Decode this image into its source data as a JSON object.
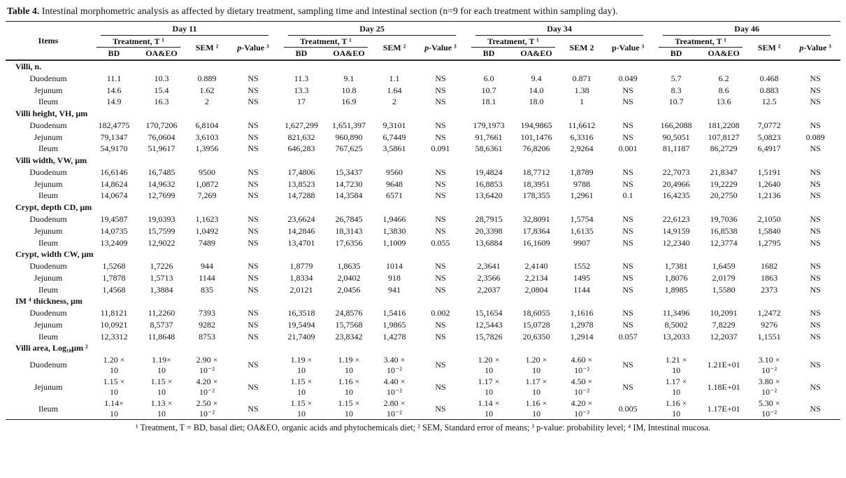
{
  "title": {
    "label": "Table 4.",
    "text": " Intestinal morphometric analysis as affected by dietary treatment, sampling time and intestinal section (n=9 for each treatment within sampling day)."
  },
  "header": {
    "items_label": "Items",
    "bd_label": "BD",
    "oaeo_label": "OA&EO",
    "days": [
      {
        "label": "Day 11",
        "treatment_label": "Treatment, T ¹",
        "sem_label": "SEM ²",
        "pvalue_p": "p",
        "pvalue_p_style": "font-style:italic",
        "pvalue_rest": "-Value ³"
      },
      {
        "label": "Day 25",
        "treatment_label": "Treatment, T ¹",
        "sem_label": "SEM ²",
        "pvalue_p": "p",
        "pvalue_p_style": "font-style:italic",
        "pvalue_rest": "-Value ³"
      },
      {
        "label": "Day 34",
        "treatment_label": "Treatment, T ¹",
        "sem_label": "SEM 2",
        "pvalue_p": "p",
        "pvalue_p_style": "font-style:normal",
        "pvalue_rest": "-Value ³"
      },
      {
        "label": "Day 46",
        "treatment_label": "Treatment, T ¹",
        "sem_label": "SEM ²",
        "pvalue_p": "p",
        "pvalue_p_style": "font-style:italic",
        "pvalue_rest": "-Value ³"
      }
    ]
  },
  "sections": [
    {
      "name": "Villi, n.",
      "rows": [
        {
          "item": "Duodenum",
          "values": [
            "11.1",
            "10.3",
            "0.889",
            "NS",
            "11.3",
            "9.1",
            "1.1",
            "NS",
            "6.0",
            "9.4",
            "0.871",
            "0.049",
            "5.7",
            "6.2",
            "0.468",
            "NS"
          ]
        },
        {
          "item": "Jejunum",
          "values": [
            "14.6",
            "15.4",
            "1.62",
            "NS",
            "13.3",
            "10.8",
            "1.64",
            "NS",
            "10.7",
            "14.0",
            "1.38",
            "NS",
            "8.3",
            "8.6",
            "0.883",
            "NS"
          ]
        },
        {
          "item": "Ileum",
          "values": [
            "14.9",
            "16.3",
            "2",
            "NS",
            "17",
            "16.9",
            "2",
            "NS",
            "18.1",
            "18.0",
            "1",
            "NS",
            "10.7",
            "13.6",
            "12.5",
            "NS"
          ]
        }
      ]
    },
    {
      "name": "Villi height, VH, µm",
      "rows": [
        {
          "item": "Duodenum",
          "values": [
            "182,4775",
            "170,7206",
            "6,8104",
            "NS",
            "1,627,299",
            "1,651,397",
            "9,3101",
            "NS",
            "179,1973",
            "194,9865",
            "11,6612",
            "NS",
            "166,2088",
            "181,2208",
            "7,0772",
            "NS"
          ]
        },
        {
          "item": "Jejunum",
          "values": [
            "79,1347",
            "76,0604",
            "3,6103",
            "NS",
            "821,632",
            "960,890",
            "6,7449",
            "NS",
            "91,7661",
            "101,1476",
            "6,3316",
            "NS",
            "90,5051",
            "107,8127",
            "5,0823",
            "0.089"
          ]
        },
        {
          "item": "Ileum",
          "values": [
            "54,9170",
            "51,9617",
            "1,3956",
            "NS",
            "646,283",
            "767,625",
            "3,5861",
            "0.091",
            "58,6361",
            "76,8206",
            "2,9264",
            "0.001",
            "81,1187",
            "86,2729",
            "6,4917",
            "NS"
          ]
        }
      ]
    },
    {
      "name": "Villi width, VW, µm",
      "rows": [
        {
          "item": "Duodenum",
          "values": [
            "16,6146",
            "16,7485",
            "9500",
            "NS",
            "17,4806",
            "15,3437",
            "9560",
            "NS",
            "19,4824",
            "18,7712",
            "1,8789",
            "NS",
            "22,7073",
            "21,8347",
            "1,5191",
            "NS"
          ]
        },
        {
          "item": "Jejunum",
          "values": [
            "14,8624",
            "14,9632",
            "1,0872",
            "NS",
            "13,8523",
            "14,7230",
            "9648",
            "NS",
            "16,8853",
            "18,3951",
            "9788",
            "NS",
            "20,4966",
            "19,2229",
            "1,2640",
            "NS"
          ]
        },
        {
          "item": "Ileum",
          "values": [
            "14,0674",
            "12,7699",
            "7,269",
            "NS",
            "14,7288",
            "14,3584",
            "6571",
            "NS",
            "13,6420",
            "178,355",
            "1,2961",
            "0.1",
            "16,4235",
            "20,2750",
            "1,2136",
            "NS"
          ]
        }
      ]
    },
    {
      "name": "Crypt, depth CD, µm",
      "rows": [
        {
          "item": "Duodenum",
          "values": [
            "19,4587",
            "19,0393",
            "1,1623",
            "NS",
            "23,6624",
            "26,7845",
            "1,9466",
            "NS",
            "28,7915",
            "32,8091",
            "1,5754",
            "NS",
            "22,6123",
            "19,7036",
            "2,1050",
            "NS"
          ]
        },
        {
          "item": "Jejunum",
          "values": [
            "14,0735",
            "15,7599",
            "1,0492",
            "NS",
            "14,2846",
            "18,3143",
            "1,3830",
            "NS",
            "20,3398",
            "17,8364",
            "1,6135",
            "NS",
            "14,9159",
            "16,8538",
            "1,5840",
            "NS"
          ]
        },
        {
          "item": "Ileum",
          "values": [
            "13,2409",
            "12,9022",
            "7489",
            "NS",
            "13,4701",
            "17,6356",
            "1,1009",
            "0.055",
            "13,6884",
            "16,1609",
            "9907",
            "NS",
            "12,2340",
            "12,3774",
            "1,2795",
            "NS"
          ]
        }
      ]
    },
    {
      "name": "Crypt, width CW, µm",
      "rows": [
        {
          "item": "Duodenum",
          "values": [
            "1,5268",
            "1,7226",
            "944",
            "NS",
            "1,8779",
            "1,8635",
            "1014",
            "NS",
            "2,3641",
            "2,4140",
            "1552",
            "NS",
            "1,7381",
            "1,6459",
            "1682",
            "NS"
          ]
        },
        {
          "item": "Jejunum",
          "values": [
            "1,7878",
            "1,5713",
            "1144",
            "NS",
            "1,8334",
            "2,0402",
            "918",
            "NS",
            "2,3566",
            "2,2134",
            "1495",
            "NS",
            "1,8076",
            "2,0179",
            "1863",
            "NS"
          ]
        },
        {
          "item": "Ileum",
          "values": [
            "1,4568",
            "1,3884",
            "835",
            "NS",
            "2,0121",
            "2,0456",
            "941",
            "NS",
            "2,2037",
            "2,0804",
            "1144",
            "NS",
            "1,8985",
            "1,5580",
            "2373",
            "NS"
          ]
        }
      ]
    },
    {
      "name": "IM ⁴ thickness, µm",
      "rows": [
        {
          "item": "Duodenum",
          "values": [
            "11,8121",
            "11,2260",
            "7393",
            "NS",
            "16,3518",
            "24,8576",
            "1,5416",
            "0.002",
            "15,1654",
            "18,6055",
            "1,1616",
            "NS",
            "11,3496",
            "10,2091",
            "1,2472",
            "NS"
          ]
        },
        {
          "item": "Jejunum",
          "values": [
            "10,0921",
            "8,5737",
            "9282",
            "NS",
            "19,5494",
            "15,7568",
            "1,9865",
            "NS",
            "12,5443",
            "15,0728",
            "1,2978",
            "NS",
            "8,5002",
            "7,8229",
            "9276",
            "NS"
          ]
        },
        {
          "item": "Ileum",
          "values": [
            "12,3312",
            "11,8648",
            "8753",
            "NS",
            "21,7409",
            "23,8342",
            "1,4278",
            "NS",
            "15,7826",
            "20,6350",
            "1,2914",
            "0.057",
            "13,2033",
            "12,2037",
            "1,1551",
            "NS"
          ]
        }
      ]
    },
    {
      "name": "Villi area, Log₁₀µm ²",
      "rows": [
        {
          "item": "Duodenum",
          "values": [
            "1.20 ×\n10",
            "1.19×\n10",
            "2.90 ×\n10⁻²",
            "NS",
            "1.19 ×\n10",
            "1.19 ×\n10",
            "3.40 ×\n10⁻²",
            "NS",
            "1.20 ×\n10",
            "1.20 ×\n10",
            "4.60 ×\n10⁻²",
            "NS",
            "1.21 ×\n10",
            "1.21E+01",
            "3.10 ×\n10⁻²",
            "NS"
          ]
        },
        {
          "item": "Jejunum",
          "values": [
            "1.15 ×\n10",
            "1.15 ×\n10",
            "4.20 ×\n10⁻²",
            "NS",
            "1.15 ×\n10",
            "1.16 ×\n10",
            "4.40 ×\n10⁻²",
            "NS",
            "1.17 ×\n10",
            "1.17 ×\n10",
            "4.50 ×\n10⁻²",
            "NS",
            "1.17 ×\n10",
            "1.18E+01",
            "3.80 ×\n10⁻²",
            "NS"
          ]
        },
        {
          "item": "Ileum",
          "values": [
            "1.14×\n10",
            "1.13 ×\n10",
            "2.50 ×\n10⁻²",
            "NS",
            "1.15 ×\n10",
            "1.15 ×\n10",
            "2.80 ×\n10⁻²",
            "NS",
            "1.14 ×\n10",
            "1.16 ×\n10",
            "4.20 ×\n10⁻²",
            "0.005",
            "1.16 ×\n10",
            "1.17E+01",
            "5.30 ×\n10⁻²",
            "NS"
          ]
        }
      ]
    }
  ],
  "footnote": "¹ Treatment, T = BD, basal diet; OA&EO, organic acids and phytochemicals diet; ² SEM, Standard error of means; ³ p-value: probability level; ⁴ IM, Intestinal mucosa."
}
